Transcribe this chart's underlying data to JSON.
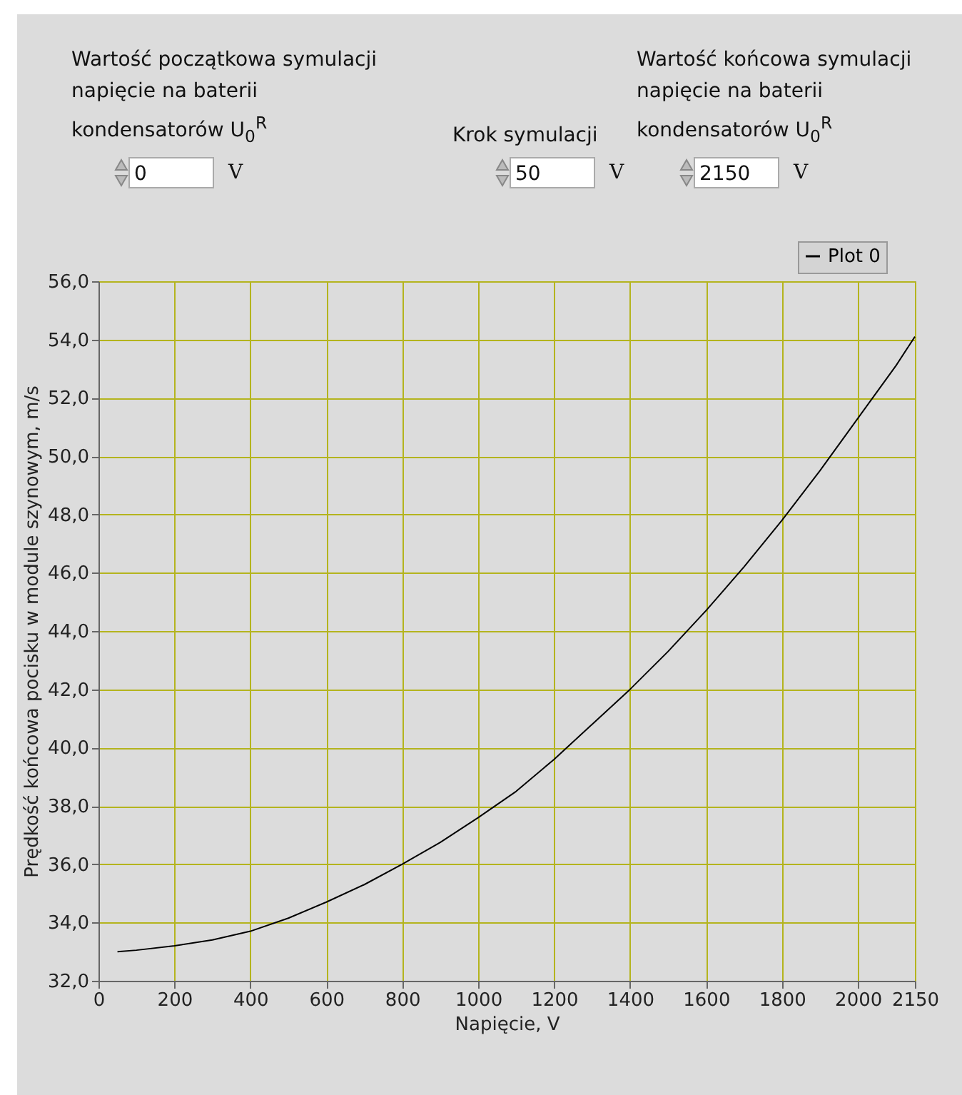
{
  "chart_data": {
    "type": "line",
    "annotations": [
      "Wartość początkowa symulacji napięcie na baterii kondensatorów U$_{0}$$^{R}$",
      "0",
      "V",
      "Krok symulacji",
      "50",
      "V",
      "Wartość końcowa symulacji napięcie na baterii kondensatorów U$_{0}$$^{R}$",
      "2150",
      "V"
    ],
    "xlabel": "Napięcie, V",
    "ylabel": "Prędkość końcowa pocisku w module szynowym, m/s",
    "x": [
      50,
      100,
      200,
      300,
      400,
      500,
      600,
      700,
      800,
      900,
      1000,
      1100,
      1200,
      1300,
      1400,
      1500,
      1600,
      1700,
      1800,
      1900,
      2000,
      2100,
      2150
    ],
    "series": [
      {
        "name": "Plot 0",
        "color": "#000000",
        "values": [
          33.0,
          33.05,
          33.2,
          33.4,
          33.7,
          34.15,
          34.7,
          35.3,
          36.0,
          36.75,
          37.6,
          38.5,
          39.6,
          40.8,
          42.0,
          43.3,
          44.7,
          46.2,
          47.8,
          49.5,
          51.3,
          53.1,
          54.1
        ]
      }
    ],
    "xlim": [
      0,
      2150
    ],
    "xticks": [
      0,
      200,
      400,
      600,
      800,
      1000,
      1200,
      1400,
      1600,
      1800,
      2000,
      2150
    ],
    "ylim": [
      32,
      56
    ],
    "yticks": [
      {
        "value": 32,
        "label": "32,0"
      },
      {
        "value": 34,
        "label": "34,0"
      },
      {
        "value": 36,
        "label": "36,0"
      },
      {
        "value": 38,
        "label": "38,0"
      },
      {
        "value": 40,
        "label": "40,0"
      },
      {
        "value": 42,
        "label": "42,0"
      },
      {
        "value": 44,
        "label": "44,0"
      },
      {
        "value": 46,
        "label": "46,0"
      },
      {
        "value": 48,
        "label": "48,0"
      },
      {
        "value": 50,
        "label": "50,0"
      },
      {
        "value": 52,
        "label": "52,0"
      },
      {
        "value": 54,
        "label": "54,0"
      },
      {
        "value": 56,
        "label": "56,0"
      }
    ],
    "grid": true,
    "legend": "top right",
    "line_style": "solid",
    "marker": "none"
  }
}
